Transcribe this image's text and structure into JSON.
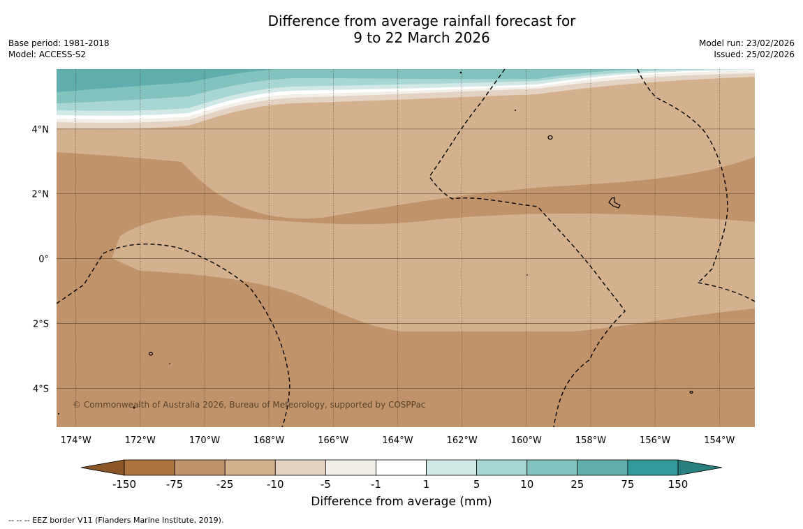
{
  "title": {
    "line1": "Difference from average rainfall forecast for",
    "line2": "9 to 22 March 2026"
  },
  "meta": {
    "base_period": "Base period: 1981-2018",
    "model": "Model: ACCESS-S2",
    "model_run": "Model run: 23/02/2026",
    "issued": "Issued: 25/02/2026"
  },
  "map": {
    "lon_range": [
      -174.6,
      -152.9
    ],
    "lat_range": [
      -5.2,
      5.85
    ],
    "lon_ticks": [
      -174,
      -172,
      -170,
      -168,
      -166,
      -164,
      -162,
      -160,
      -158,
      -156,
      -154
    ],
    "lon_labels": [
      "174°W",
      "172°W",
      "170°W",
      "168°W",
      "166°W",
      "164°W",
      "162°W",
      "160°W",
      "158°W",
      "156°W",
      "154°W"
    ],
    "lat_ticks": [
      4,
      2,
      0,
      -2,
      -4
    ],
    "lat_labels": [
      "4°N",
      "2°N",
      "0°",
      "2°S",
      "4°S"
    ],
    "copyright": "© Commonwealth of Australia 2026, Bureau of Meteorology, supported by COSPPac"
  },
  "colorbar": {
    "ticks": [
      "-150",
      "-75",
      "-25",
      "-10",
      "-5",
      "-1",
      "1",
      "5",
      "10",
      "25",
      "75",
      "150"
    ],
    "colors": [
      "#aa723c",
      "#c0936a",
      "#d3b18f",
      "#e4d2c2",
      "#f2efe9",
      "#ffffff",
      "#d2e8e6",
      "#a8d6d4",
      "#82c2bf",
      "#5fadac",
      "#33999a"
    ],
    "under_color": "#8a5628",
    "over_color": "#2a7f80",
    "label": "Difference from average (mm)"
  },
  "legend": {
    "eez": "--  --  -- EEZ border V11 (Flanders Marine Institute, 2019)."
  }
}
